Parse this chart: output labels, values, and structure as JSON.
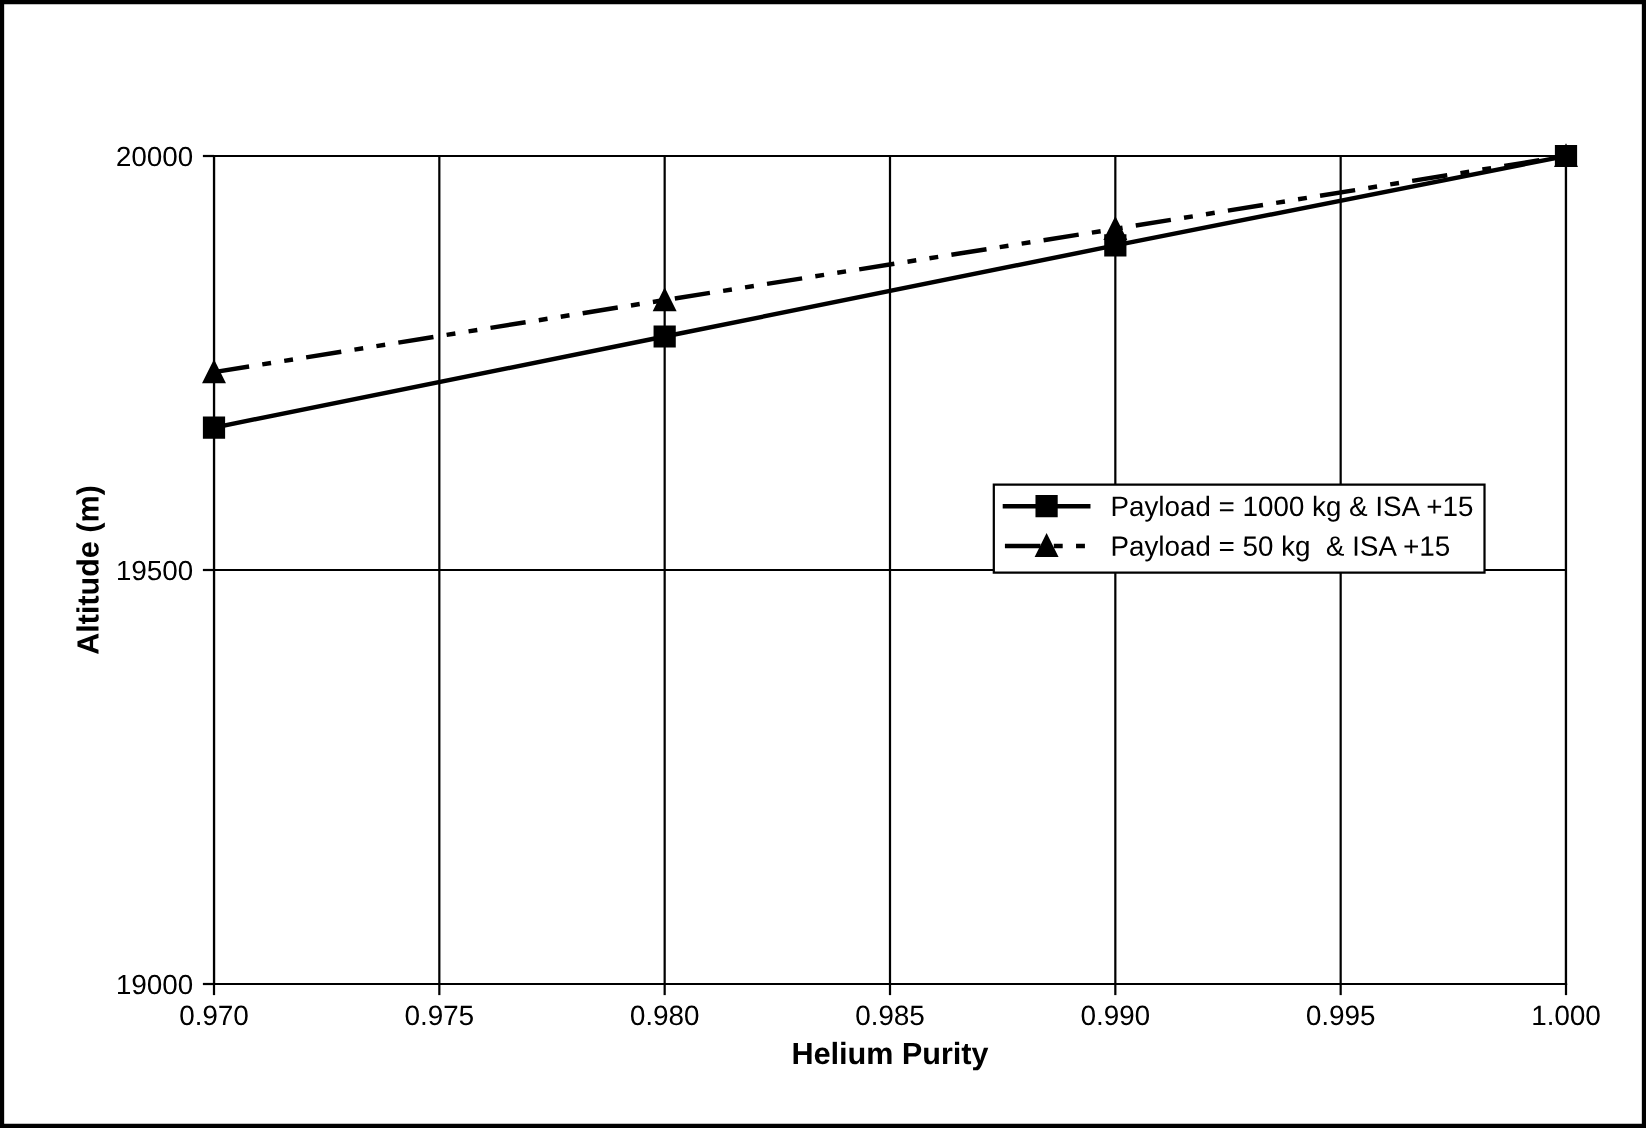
{
  "chart_data": {
    "type": "line",
    "xlabel": "Helium Purity",
    "ylabel": "Altitude (m)",
    "x": [
      0.97,
      0.98,
      0.99,
      1.0
    ],
    "series": [
      {
        "name": "Payload = 1000 kg & ISA +15",
        "color": "#000000",
        "marker": "square",
        "line_style": "solid",
        "values": [
          19672,
          19782,
          19892,
          20000
        ]
      },
      {
        "name": "Payload = 50 kg  & ISA +15",
        "color": "#000000",
        "marker": "triangle",
        "line_style": "dashed",
        "values": [
          19739,
          19826,
          19912,
          20000
        ]
      }
    ],
    "xlim": [
      0.97,
      1.0
    ],
    "xticks": [
      {
        "value": 0.97,
        "label": "0.970"
      },
      {
        "value": 0.975,
        "label": "0.975"
      },
      {
        "value": 0.98,
        "label": "0.980"
      },
      {
        "value": 0.985,
        "label": "0.985"
      },
      {
        "value": 0.99,
        "label": "0.990"
      },
      {
        "value": 0.995,
        "label": "0.995"
      },
      {
        "value": 1.0,
        "label": "1.000"
      }
    ],
    "ylim": [
      19000,
      20000
    ],
    "yticks": [
      19000,
      19500,
      20000
    ],
    "grid": true,
    "legend": "right"
  }
}
